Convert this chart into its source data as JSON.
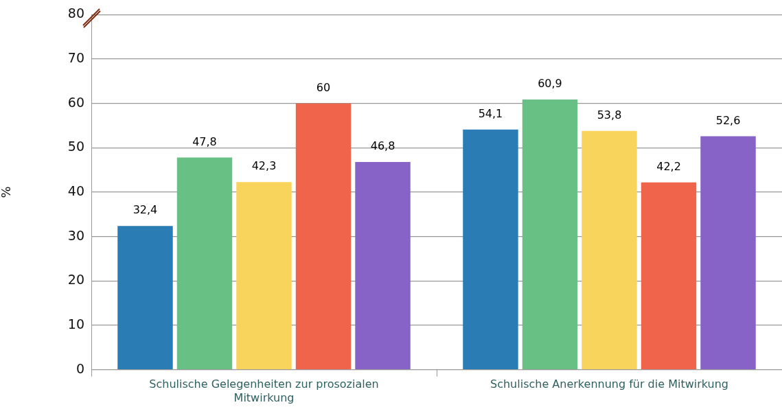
{
  "chart_data": {
    "type": "bar",
    "ylabel": "%",
    "categories": [
      "Schulische Gelegenheiten zur prosozialen Mitwirkung",
      "Schulische Anerkennung für die Mitwirkung"
    ],
    "series": [
      {
        "color": "#2a7db4",
        "values": [
          32.4,
          54.1
        ],
        "value_labels": [
          "32,4",
          "54,1"
        ]
      },
      {
        "color": "#69c084",
        "values": [
          47.8,
          60.9
        ],
        "value_labels": [
          "47,8",
          "60,9"
        ]
      },
      {
        "color": "#f8d45c",
        "values": [
          42.3,
          53.8
        ],
        "value_labels": [
          "42,3",
          "53,8"
        ]
      },
      {
        "color": "#f0644c",
        "values": [
          60,
          42.2
        ],
        "value_labels": [
          "60",
          "42,2"
        ]
      },
      {
        "color": "#8763c8",
        "values": [
          46.8,
          52.6
        ],
        "value_labels": [
          "46,8",
          "52,6"
        ]
      }
    ],
    "ylim": [
      0,
      80
    ],
    "yticks": [
      0,
      10,
      20,
      30,
      40,
      50,
      60,
      70,
      80
    ],
    "grid": "y",
    "legend": false
  }
}
